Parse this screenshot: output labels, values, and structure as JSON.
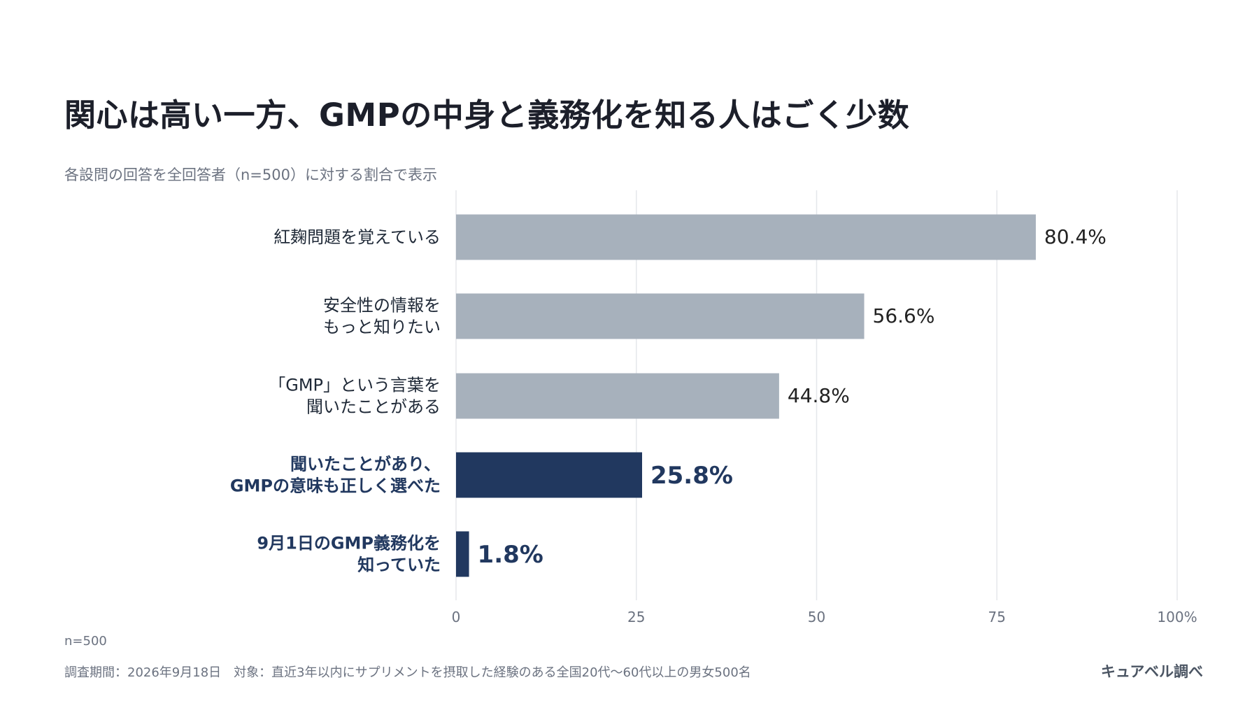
{
  "title": "関心は高い一方、GMPの中身と義務化を知る人はごく少数",
  "subtitle": "各設問の回答を全回答者（n=500）に対する割合で表示",
  "colors": {
    "muted_bar": "#a7b1bc",
    "highlight_bar": "#21385f",
    "grid": "#e5e7eb",
    "axis_text": "#6b7280",
    "label_text": "#1f2937"
  },
  "chart_data": {
    "type": "bar",
    "orientation": "horizontal",
    "categories": [
      [
        "紅麹問題を覚えている"
      ],
      [
        "安全性の情報を",
        "もっと知りたい"
      ],
      [
        "「GMP」という言葉を",
        "聞いたことがある"
      ],
      [
        "聞いたことがあり、",
        "GMPの意味も正しく選べた"
      ],
      [
        "9月1日のGMP義務化を",
        "知っていた"
      ]
    ],
    "values": [
      80.4,
      56.6,
      44.8,
      25.8,
      1.8
    ],
    "value_labels": [
      "80.4%",
      "56.6%",
      "44.8%",
      "25.8%",
      "1.8%"
    ],
    "highlighted": [
      false,
      false,
      false,
      true,
      true
    ],
    "xlim": [
      0,
      100
    ],
    "xticks": [
      0,
      25,
      50,
      75,
      100
    ],
    "xtick_labels": [
      "0",
      "25",
      "50",
      "75",
      "100%"
    ],
    "grid": true
  },
  "footer": {
    "n_label": "n=500",
    "note": "調査期間：2026年9月18日　対象：直近3年以内にサプリメントを摂取した経験のある全国20代〜60代以上の男女500名",
    "source": "キュアベル調べ"
  }
}
